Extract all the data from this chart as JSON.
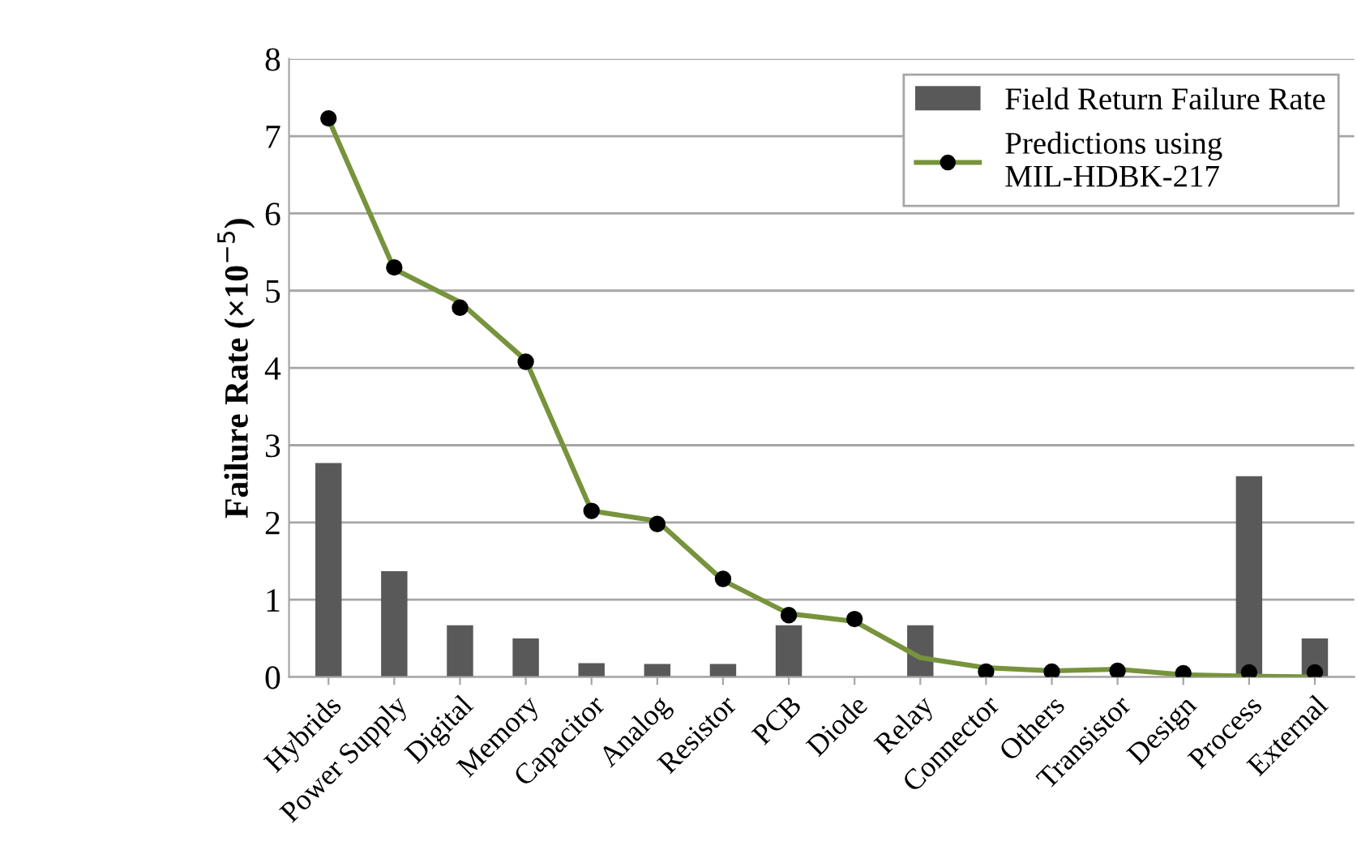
{
  "chart_data": {
    "type": "bar",
    "ylabel": "Failure Rate (×10$^{−5}$)",
    "categories": [
      "Hybrids",
      "Power Supply",
      "Digital",
      "Memory",
      "Capacitor",
      "Analog",
      "Resistor",
      "PCB",
      "Diode",
      "Relay",
      "Connector",
      "Others",
      "Transistor",
      "Design",
      "Process",
      "External"
    ],
    "series": [
      {
        "name": "Field Return Failure Rate",
        "color": "#595959",
        "values": [
          2.77,
          1.37,
          0.67,
          0.5,
          0.18,
          0.17,
          0.17,
          0.67,
          0,
          0.67,
          0,
          0,
          0,
          0,
          2.6,
          0.5
        ]
      },
      {
        "name": "Predictions using MIL-HDBK-217",
        "type": "line",
        "color": "#77933c",
        "marker": "none",
        "values": [
          7.22,
          5.28,
          4.85,
          4.1,
          2.15,
          2.02,
          1.25,
          0.82,
          0.72,
          0.25,
          0.12,
          0.08,
          0.1,
          0.03,
          0.01,
          0
        ]
      },
      {
        "type": "scatter",
        "color": "#000000",
        "marker": "circle",
        "values": [
          7.23,
          5.3,
          4.78,
          4.08,
          2.15,
          1.98,
          1.27,
          0.8,
          0.75,
          null,
          0.07,
          0.07,
          0.08,
          0.05,
          0.06,
          0.06
        ]
      }
    ],
    "ylim": [
      0,
      8
    ],
    "yticks": [
      0,
      1,
      2,
      3,
      4,
      5,
      6,
      7,
      8
    ],
    "grid": "y",
    "legend": "top right"
  }
}
